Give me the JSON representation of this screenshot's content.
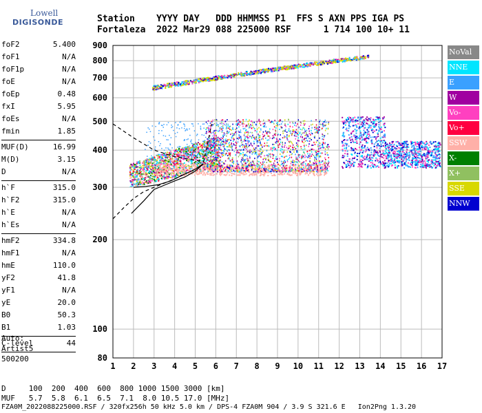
{
  "logo": {
    "line1": "Lowell",
    "line2": "DIGISONDE"
  },
  "header": {
    "line1": "Station    YYYY DAY   DDD HHMMSS P1  FFS S AXN PPS IGA PS",
    "line2": "Fortaleza  2022 Mar29 088 225000 RSF      1 714 100 10+ 11"
  },
  "params": [
    {
      "name": "foF2",
      "value": "5.400"
    },
    {
      "name": "foF1",
      "value": "N/A"
    },
    {
      "name": "foF1p",
      "value": "N/A"
    },
    {
      "name": "foE",
      "value": "N/A"
    },
    {
      "name": "foEp",
      "value": "0.48"
    },
    {
      "name": "fxI",
      "value": "5.95"
    },
    {
      "name": "foEs",
      "value": "N/A"
    },
    {
      "name": "fmin",
      "value": "1.85"
    },
    {
      "sep": true
    },
    {
      "name": "MUF(D)",
      "value": "16.99"
    },
    {
      "name": "M(D)",
      "value": "3.15"
    },
    {
      "name": "D",
      "value": "N/A"
    },
    {
      "sep": true
    },
    {
      "name": "h`F",
      "value": "315.0"
    },
    {
      "name": "h`F2",
      "value": "315.0"
    },
    {
      "name": "h`E",
      "value": "N/A"
    },
    {
      "name": "h`Es",
      "value": "N/A"
    },
    {
      "sep": true
    },
    {
      "name": "hmF2",
      "value": "334.8"
    },
    {
      "name": "hmF1",
      "value": "N/A"
    },
    {
      "name": "hmE",
      "value": "110.0"
    },
    {
      "name": "yF2",
      "value": "41.8"
    },
    {
      "name": "yF1",
      "value": "N/A"
    },
    {
      "name": "yE",
      "value": "20.0"
    },
    {
      "name": "B0",
      "value": "50.3"
    },
    {
      "name": "B1",
      "value": "1.03"
    },
    {
      "sep": true
    },
    {
      "name": "C-level",
      "value": "44"
    },
    {
      "sep": true
    }
  ],
  "auto": {
    "line1": "Auto:",
    "line2": "Artist5",
    "line3": "500200"
  },
  "bottom": {
    "d_row": "D     100  200  400  600  800 1000 1500 3000 [km]",
    "muf_row": "MUF   5.7  5.8  6.1  6.5  7.1  8.0 10.5 17.0 [MHz]"
  },
  "footer": "FZA0M_2022088225000.RSF / 320fx256h 50 kHz 5.0 km / DPS-4 FZA0M 904 / 3.9 S 321.6 E   Ion2Png 1.3.20",
  "legend": [
    {
      "label": "NoVal",
      "color": "#888888"
    },
    {
      "label": "NNE",
      "color": "#00e5ff"
    },
    {
      "label": "E",
      "color": "#3aa0ff"
    },
    {
      "label": "W",
      "color": "#a000a0"
    },
    {
      "label": "Vo-",
      "color": "#ff40c0"
    },
    {
      "label": "Vo+",
      "color": "#ff0040"
    },
    {
      "label": "SSW",
      "color": "#ffb0a8"
    },
    {
      "label": "X-",
      "color": "#008000"
    },
    {
      "label": "X+",
      "color": "#90c060"
    },
    {
      "label": "SSE",
      "color": "#d8d800"
    },
    {
      "label": "NNW",
      "color": "#0000d0"
    }
  ],
  "chart_data": {
    "type": "scatter",
    "title": "",
    "xlabel": "",
    "ylabel": "",
    "x_unit": "MHz",
    "y_unit": "km",
    "xlim": [
      1,
      17
    ],
    "ylim": [
      80,
      900
    ],
    "y_scale": "log",
    "x_ticks": [
      "1",
      "2",
      "3",
      "4",
      "5",
      "6",
      "7",
      "8",
      "9",
      "10",
      "11",
      "12",
      "13",
      "14",
      "15",
      "16",
      "17"
    ],
    "y_ticks": [
      "80",
      "100",
      "200",
      "300",
      "400",
      "500",
      "600",
      "700",
      "800",
      "900"
    ],
    "y_tick_values": [
      80,
      100,
      200,
      300,
      400,
      500,
      600,
      700,
      800,
      900
    ],
    "grid": true,
    "echo_groups": [
      {
        "label": "F2 O-trace region",
        "x": [
          1.8,
          6.0
        ],
        "y": [
          300,
          400
        ]
      },
      {
        "label": "F spread region",
        "x": [
          5.5,
          11.5
        ],
        "y": [
          320,
          500
        ]
      },
      {
        "label": "F spread high freq",
        "x": [
          12.0,
          16.9
        ],
        "y": [
          350,
          520
        ]
      },
      {
        "label": "second hop",
        "x": [
          2.8,
          13.5
        ],
        "y": [
          650,
          830
        ]
      }
    ],
    "curves": [
      {
        "name": "profile-solid",
        "style": "solid",
        "x": [
          1.9,
          2.5,
          3.0,
          3.5,
          4.0,
          4.5,
          5.0,
          5.4
        ],
        "y": [
          245,
          270,
          295,
          305,
          315,
          325,
          340,
          360
        ]
      },
      {
        "name": "profile-upper",
        "style": "solid",
        "x": [
          2.0,
          2.6,
          3.2,
          3.8,
          4.4,
          5.0,
          5.4
        ],
        "y": [
          300,
          302,
          306,
          315,
          330,
          345,
          360
        ]
      },
      {
        "name": "bound-upper-dashed",
        "style": "dashed",
        "x": [
          1.0,
          2.0,
          3.0,
          4.0,
          5.0,
          5.4,
          5.6,
          5.8
        ],
        "y": [
          490,
          440,
          400,
          380,
          370,
          365,
          420,
          490
        ]
      },
      {
        "name": "bound-lower-dashed",
        "style": "dashed",
        "x": [
          1.0,
          1.5,
          2.0,
          2.5,
          3.0,
          4.0,
          5.0,
          5.4
        ],
        "y": [
          235,
          255,
          275,
          290,
          300,
          320,
          345,
          360
        ]
      }
    ]
  }
}
